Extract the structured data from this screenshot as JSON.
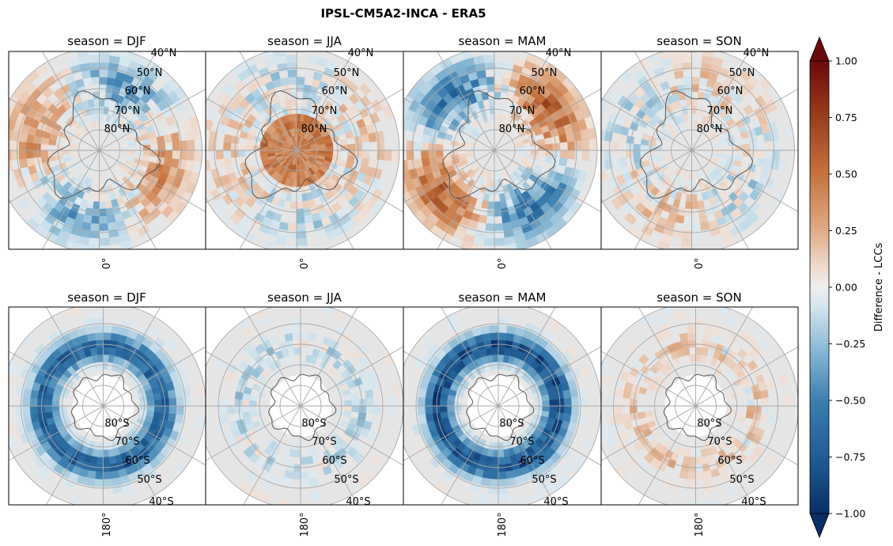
{
  "figure": {
    "title": "IPSL-CM5A2-INCA - ERA5"
  },
  "colorbar": {
    "label": "Difference - LCCs",
    "min": -1.0,
    "max": 1.0,
    "ticks": [
      "1.00",
      "0.75",
      "0.50",
      "0.25",
      "0.00",
      "−0.25",
      "−0.50",
      "−0.75",
      "−1.00"
    ],
    "tick_values": [
      1.0,
      0.75,
      0.5,
      0.25,
      0.0,
      -0.25,
      -0.5,
      -0.75,
      -1.0
    ],
    "extend": "both",
    "colors": {
      "min": "#0a2f66",
      "mid": "#f0f0f0",
      "max": "#6b0a0a"
    }
  },
  "panel_titles": {
    "nh_djf": "season = DJF",
    "nh_jja": "season = JJA",
    "nh_mam": "season = MAM",
    "nh_son": "season = SON",
    "sh_djf": "season = DJF",
    "sh_jja": "season = JJA",
    "sh_mam": "season = MAM",
    "sh_son": "season = SON"
  },
  "nh_lat_labels": [
    "40°N",
    "50°N",
    "60°N",
    "70°N",
    "80°N"
  ],
  "sh_lat_labels": [
    "80°S",
    "70°S",
    "60°S",
    "50°S",
    "40°S"
  ],
  "nh_lon_label": "0°",
  "sh_lon_label": "180°",
  "chart_data": [
    {
      "type": "heatmap",
      "hemisphere": "north",
      "season": "DJF",
      "title": "season = DJF",
      "colorbar_label": "Difference - LCCs",
      "vmin": -1.0,
      "vmax": 1.0
    },
    {
      "type": "heatmap",
      "hemisphere": "north",
      "season": "JJA",
      "title": "season = JJA",
      "colorbar_label": "Difference - LCCs",
      "vmin": -1.0,
      "vmax": 1.0
    },
    {
      "type": "heatmap",
      "hemisphere": "north",
      "season": "MAM",
      "title": "season = MAM",
      "colorbar_label": "Difference - LCCs",
      "vmin": -1.0,
      "vmax": 1.0
    },
    {
      "type": "heatmap",
      "hemisphere": "north",
      "season": "SON",
      "title": "season = SON",
      "colorbar_label": "Difference - LCCs",
      "vmin": -1.0,
      "vmax": 1.0
    },
    {
      "type": "heatmap",
      "hemisphere": "south",
      "season": "DJF",
      "title": "season = DJF",
      "colorbar_label": "Difference - LCCs",
      "vmin": -1.0,
      "vmax": 1.0
    },
    {
      "type": "heatmap",
      "hemisphere": "south",
      "season": "JJA",
      "title": "season = JJA",
      "colorbar_label": "Difference - LCCs",
      "vmin": -1.0,
      "vmax": 1.0
    },
    {
      "type": "heatmap",
      "hemisphere": "south",
      "season": "MAM",
      "title": "season = MAM",
      "colorbar_label": "Difference - LCCs",
      "vmin": -1.0,
      "vmax": 1.0
    },
    {
      "type": "heatmap",
      "hemisphere": "south",
      "season": "SON",
      "title": "season = SON",
      "colorbar_label": "Difference - LCCs",
      "vmin": -1.0,
      "vmax": 1.0
    }
  ]
}
